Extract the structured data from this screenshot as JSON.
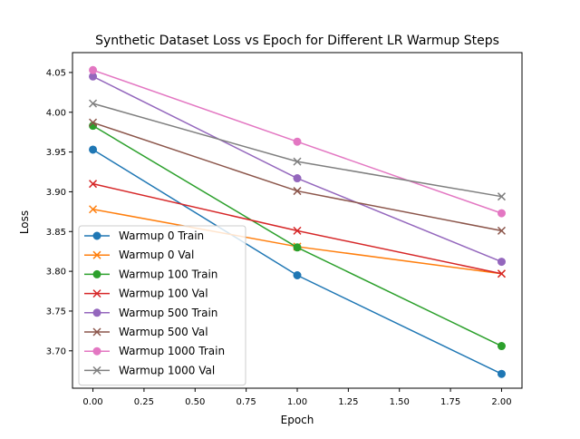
{
  "chart_data": {
    "type": "line",
    "title": "Synthetic Dataset Loss vs Epoch for Different LR Warmup Steps",
    "xlabel": "Epoch",
    "ylabel": "Loss",
    "xlim": [
      -0.1,
      2.1
    ],
    "ylim": [
      3.653,
      4.075
    ],
    "xticks": [
      0.0,
      0.25,
      0.5,
      0.75,
      1.0,
      1.25,
      1.5,
      1.75,
      2.0
    ],
    "xtick_labels": [
      "0.00",
      "0.25",
      "0.50",
      "0.75",
      "1.00",
      "1.25",
      "1.50",
      "1.75",
      "2.00"
    ],
    "yticks": [
      3.7,
      3.75,
      3.8,
      3.85,
      3.9,
      3.95,
      4.0,
      4.05
    ],
    "ytick_labels": [
      "3.70",
      "3.75",
      "3.80",
      "3.85",
      "3.90",
      "3.95",
      "4.00",
      "4.05"
    ],
    "grid": false,
    "legend_position": "lower-left",
    "x": [
      0,
      1,
      2
    ],
    "series": [
      {
        "name": "Warmup 0 Train",
        "values": [
          3.953,
          3.795,
          3.671
        ],
        "color": "#1f77b4",
        "marker": "circle"
      },
      {
        "name": "Warmup 0 Val",
        "values": [
          3.878,
          3.831,
          3.797
        ],
        "color": "#ff7f0e",
        "marker": "x"
      },
      {
        "name": "Warmup 100 Train",
        "values": [
          3.983,
          3.83,
          3.706
        ],
        "color": "#2ca02c",
        "marker": "circle"
      },
      {
        "name": "Warmup 100 Val",
        "values": [
          3.91,
          3.851,
          3.797
        ],
        "color": "#d62728",
        "marker": "x"
      },
      {
        "name": "Warmup 500 Train",
        "values": [
          4.045,
          3.917,
          3.812
        ],
        "color": "#9467bd",
        "marker": "circle"
      },
      {
        "name": "Warmup 500 Val",
        "values": [
          3.987,
          3.901,
          3.851
        ],
        "color": "#8c564b",
        "marker": "x"
      },
      {
        "name": "Warmup 1000 Train",
        "values": [
          4.053,
          3.963,
          3.873
        ],
        "color": "#e377c2",
        "marker": "circle"
      },
      {
        "name": "Warmup 1000 Val",
        "values": [
          4.011,
          3.938,
          3.894
        ],
        "color": "#7f7f7f",
        "marker": "x"
      }
    ]
  }
}
